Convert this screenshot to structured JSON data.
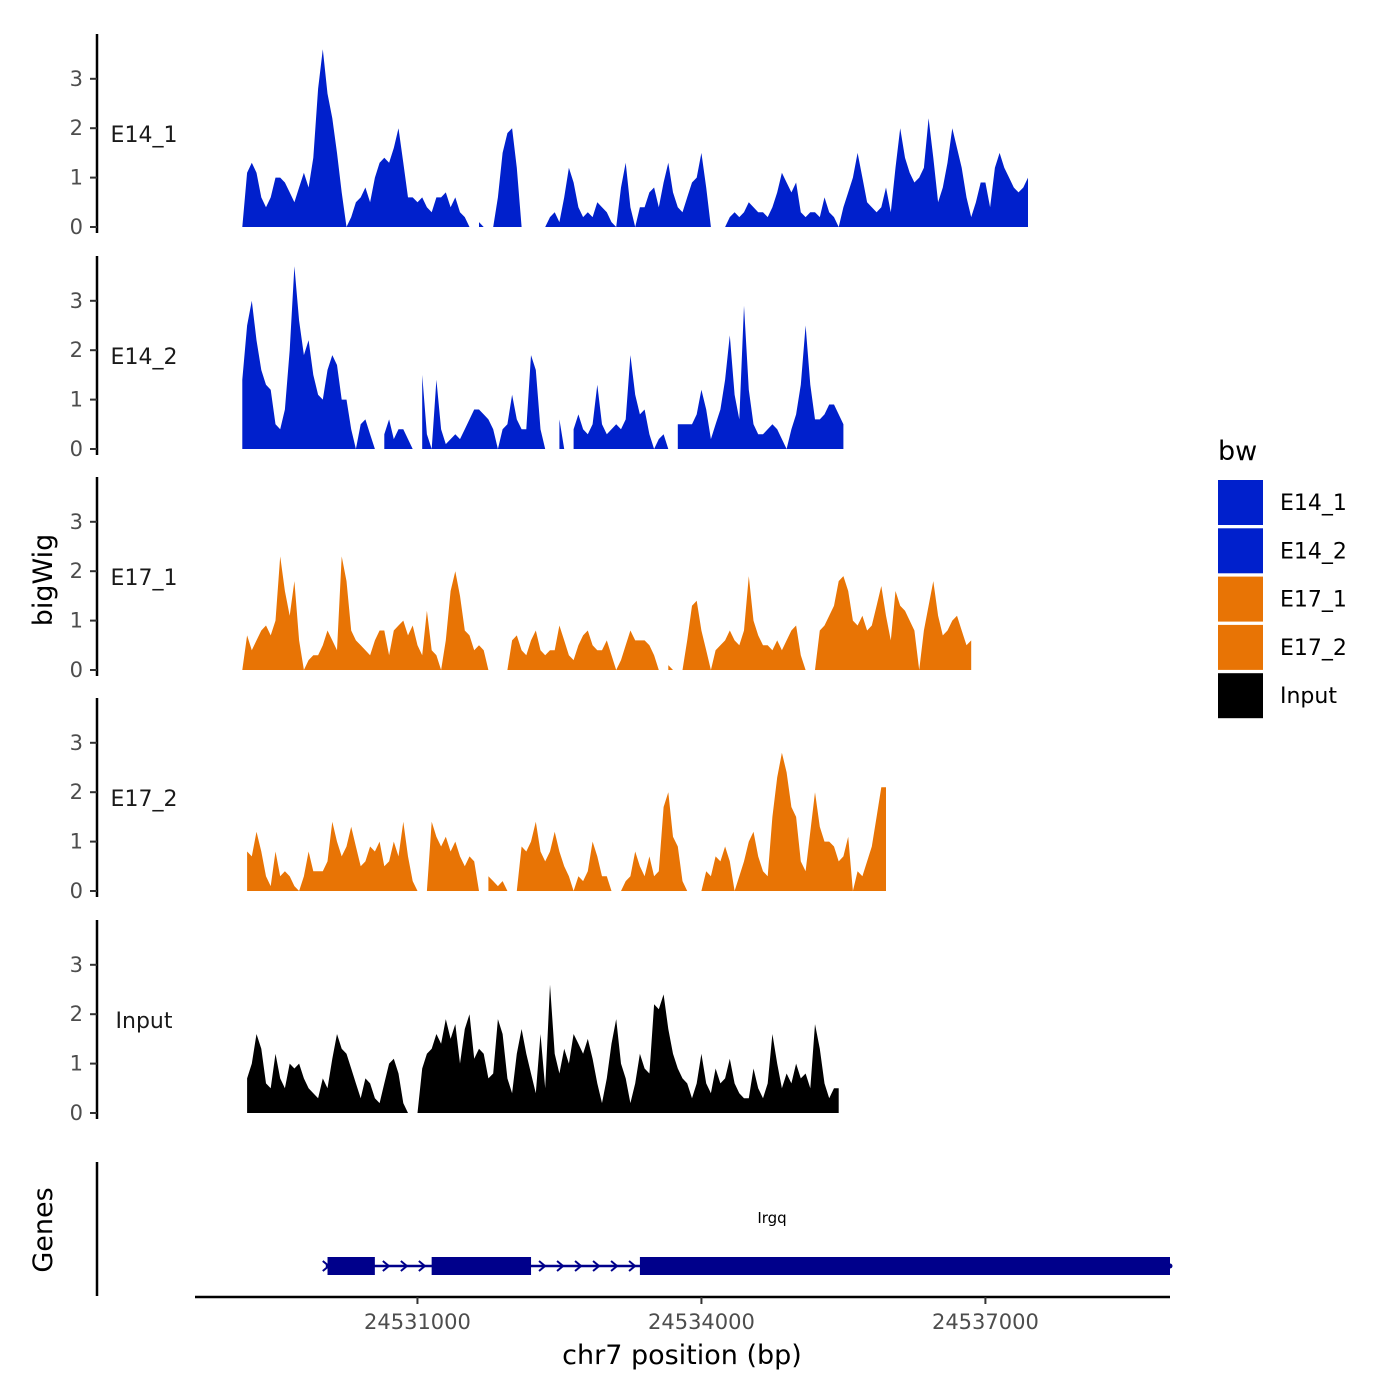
{
  "chart_data": {
    "type": "area",
    "x_range": [
      24528650,
      24538950
    ],
    "y_range": [
      0,
      4
    ],
    "y_ticks": [
      0,
      1,
      2,
      3
    ],
    "ylabel": "bigWig",
    "xlabel": "chr7 position (bp)",
    "x_ticks": [
      {
        "value": 24531000,
        "label": "24531000"
      },
      {
        "value": 24534000,
        "label": "24534000"
      },
      {
        "value": 24537000,
        "label": "24537000"
      }
    ],
    "legend": {
      "title": "bw",
      "items": [
        {
          "label": "E14_1",
          "color": "#0020CC"
        },
        {
          "label": "E14_2",
          "color": "#0020CC"
        },
        {
          "label": "E17_1",
          "color": "#E87405"
        },
        {
          "label": "E17_2",
          "color": "#E87405"
        },
        {
          "label": "Input",
          "color": "#000000"
        }
      ]
    },
    "series": [
      {
        "name": "E14_1",
        "label": "E14_1",
        "color": "#0020CC",
        "x0": 24529150,
        "step": 50,
        "values": [
          0.0,
          1.1,
          1.3,
          1.1,
          0.6,
          0.4,
          0.6,
          1.0,
          1.0,
          0.9,
          0.7,
          0.5,
          0.8,
          1.1,
          0.8,
          1.4,
          2.8,
          3.6,
          2.7,
          2.2,
          1.5,
          0.7,
          0.0,
          0.2,
          0.5,
          0.6,
          0.8,
          0.5,
          1.0,
          1.3,
          1.4,
          1.3,
          1.6,
          2.0,
          1.3,
          0.6,
          0.6,
          0.5,
          0.6,
          0.4,
          0.3,
          0.6,
          0.6,
          0.7,
          0.4,
          0.6,
          0.3,
          0.2,
          0.0,
          null,
          0.1,
          0.0,
          null,
          0.0,
          0.6,
          1.5,
          1.9,
          2.0,
          1.2,
          0.0,
          null,
          null,
          null,
          null,
          0.0,
          0.2,
          0.3,
          0.1,
          0.6,
          1.2,
          0.9,
          0.4,
          0.2,
          0.3,
          0.2,
          0.5,
          0.4,
          0.3,
          0.1,
          0.0,
          0.8,
          1.3,
          0.4,
          0.0,
          0.4,
          0.4,
          0.7,
          0.8,
          0.4,
          0.9,
          1.3,
          0.7,
          0.4,
          0.3,
          0.6,
          0.9,
          1.0,
          1.5,
          0.8,
          0.0,
          null,
          null,
          0.0,
          0.2,
          0.3,
          0.2,
          0.3,
          0.5,
          0.4,
          0.3,
          0.3,
          0.2,
          0.4,
          0.7,
          1.1,
          0.9,
          0.7,
          0.9,
          0.3,
          0.2,
          0.3,
          0.3,
          0.2,
          0.6,
          0.3,
          0.2,
          0.0,
          0.4,
          0.7,
          1.0,
          1.5,
          1.0,
          0.5,
          0.4,
          0.3,
          0.4,
          0.8,
          0.3,
          1.2,
          2.0,
          1.4,
          1.1,
          0.9,
          1.0,
          1.2,
          2.2,
          1.4,
          0.5,
          0.8,
          1.3,
          2.0,
          1.6,
          1.2,
          0.6,
          0.2,
          0.5,
          0.9,
          0.9,
          0.4,
          1.2,
          1.5,
          1.2,
          1.0,
          0.8,
          0.7,
          0.8,
          1.0
        ]
      },
      {
        "name": "E14_2",
        "label": "E14_2",
        "color": "#0020CC",
        "x0": 24529150,
        "step": 50,
        "values": [
          1.4,
          2.5,
          3.0,
          2.2,
          1.6,
          1.3,
          1.2,
          0.5,
          0.4,
          0.8,
          2.0,
          3.7,
          2.6,
          1.9,
          2.2,
          1.5,
          1.1,
          1.0,
          1.6,
          1.9,
          1.7,
          1.0,
          1.0,
          0.4,
          0.0,
          0.5,
          0.6,
          0.3,
          0.0,
          null,
          0.3,
          0.6,
          0.2,
          0.4,
          0.4,
          0.2,
          0.0,
          null,
          1.5,
          0.3,
          0.0,
          1.4,
          0.4,
          0.1,
          0.2,
          0.3,
          0.2,
          0.4,
          0.6,
          0.8,
          0.8,
          0.7,
          0.6,
          0.4,
          0.0,
          0.4,
          0.5,
          1.1,
          0.6,
          0.4,
          0.4,
          1.9,
          1.6,
          0.4,
          0.0,
          null,
          null,
          0.6,
          0.0,
          null,
          0.4,
          0.7,
          0.4,
          0.3,
          0.5,
          1.3,
          0.5,
          0.3,
          0.4,
          0.5,
          0.4,
          0.6,
          1.9,
          1.1,
          0.7,
          0.8,
          0.3,
          0.0,
          0.2,
          0.3,
          0.0,
          null,
          0.5,
          0.5,
          0.5,
          0.5,
          0.7,
          1.2,
          0.8,
          0.2,
          0.5,
          0.8,
          1.4,
          2.3,
          1.1,
          0.6,
          2.9,
          1.2,
          0.5,
          0.3,
          0.3,
          0.4,
          0.5,
          0.4,
          0.2,
          0.0,
          0.4,
          0.7,
          1.3,
          2.5,
          1.3,
          0.6,
          0.6,
          0.7,
          0.9,
          0.9,
          0.7,
          0.5
        ]
      },
      {
        "name": "E17_1",
        "label": "E17_1",
        "color": "#E87405",
        "x0": 24529150,
        "step": 50,
        "values": [
          0.0,
          0.7,
          0.4,
          0.6,
          0.8,
          0.9,
          0.7,
          1.0,
          2.3,
          1.6,
          1.1,
          1.8,
          0.6,
          0.0,
          0.2,
          0.3,
          0.3,
          0.5,
          0.8,
          0.6,
          0.4,
          2.3,
          1.8,
          0.8,
          0.6,
          0.5,
          0.4,
          0.3,
          0.6,
          0.8,
          0.8,
          0.3,
          0.8,
          0.9,
          1.0,
          0.7,
          0.9,
          0.5,
          0.3,
          1.2,
          0.4,
          0.3,
          0.0,
          0.6,
          1.6,
          2.0,
          1.5,
          0.8,
          0.7,
          0.4,
          0.5,
          0.4,
          0.0,
          null,
          null,
          null,
          0.0,
          0.6,
          0.7,
          0.4,
          0.3,
          0.6,
          0.8,
          0.4,
          0.3,
          0.4,
          0.4,
          0.9,
          0.6,
          0.3,
          0.2,
          0.5,
          0.7,
          0.8,
          0.5,
          0.4,
          0.4,
          0.6,
          0.3,
          0.0,
          0.2,
          0.5,
          0.8,
          0.6,
          0.6,
          0.6,
          0.5,
          0.3,
          0.0,
          null,
          0.1,
          0.0,
          null,
          0.0,
          0.6,
          1.3,
          1.4,
          0.8,
          0.4,
          0.0,
          0.4,
          0.5,
          0.6,
          0.8,
          0.6,
          0.5,
          0.8,
          1.9,
          1.0,
          0.7,
          0.5,
          0.5,
          0.4,
          0.6,
          0.4,
          0.6,
          0.8,
          0.9,
          0.3,
          0.0,
          null,
          0.0,
          0.8,
          0.9,
          1.1,
          1.3,
          1.8,
          1.9,
          1.6,
          1.0,
          0.9,
          1.1,
          0.8,
          0.9,
          1.3,
          1.7,
          1.1,
          0.6,
          1.6,
          1.3,
          1.2,
          1.0,
          0.8,
          0.0,
          0.8,
          1.3,
          1.8,
          1.1,
          0.7,
          0.8,
          1.0,
          1.1,
          0.8,
          0.5,
          0.6
        ]
      },
      {
        "name": "E17_2",
        "label": "E17_2",
        "color": "#E87405",
        "x0": 24529200,
        "step": 50,
        "values": [
          0.8,
          0.7,
          1.2,
          0.8,
          0.3,
          0.1,
          0.8,
          0.3,
          0.4,
          0.3,
          0.1,
          0.0,
          0.3,
          0.8,
          0.4,
          0.4,
          0.4,
          0.6,
          1.4,
          1.0,
          0.7,
          0.9,
          1.3,
          0.9,
          0.5,
          0.6,
          0.9,
          0.8,
          1.0,
          0.5,
          0.6,
          1.0,
          0.7,
          1.4,
          0.7,
          0.2,
          0.0,
          null,
          0.0,
          1.4,
          1.1,
          0.9,
          1.1,
          0.8,
          1.0,
          0.7,
          0.5,
          0.7,
          0.6,
          0.0,
          null,
          0.3,
          0.2,
          0.1,
          0.2,
          0.0,
          null,
          0.0,
          0.9,
          0.8,
          1.0,
          1.4,
          0.8,
          0.6,
          0.8,
          1.2,
          0.8,
          0.5,
          0.3,
          0.0,
          0.3,
          0.2,
          0.4,
          1.0,
          0.7,
          0.3,
          0.3,
          0.0,
          null,
          0.0,
          0.2,
          0.3,
          0.8,
          0.5,
          0.3,
          0.7,
          0.3,
          0.4,
          1.7,
          2.0,
          1.1,
          0.9,
          0.2,
          0.0,
          null,
          null,
          0.0,
          0.4,
          0.3,
          0.7,
          0.6,
          0.9,
          0.6,
          0.0,
          0.3,
          0.6,
          1.0,
          1.2,
          0.7,
          0.4,
          0.3,
          1.5,
          2.3,
          2.8,
          2.4,
          1.7,
          1.5,
          0.6,
          0.4,
          1.2,
          2.0,
          1.3,
          1.0,
          1.0,
          0.9,
          0.6,
          0.7,
          1.1,
          0.0,
          0.4,
          0.3,
          0.6,
          0.9,
          1.5,
          2.1,
          2.1
        ]
      },
      {
        "name": "Input",
        "label": "Input",
        "color": "#000000",
        "x0": 24529200,
        "step": 50,
        "values": [
          0.7,
          1.0,
          1.6,
          1.3,
          0.6,
          0.5,
          1.2,
          0.7,
          0.5,
          1.0,
          0.9,
          1.0,
          0.7,
          0.5,
          0.4,
          0.3,
          0.7,
          0.5,
          1.1,
          1.6,
          1.3,
          1.2,
          0.9,
          0.6,
          0.3,
          0.7,
          0.6,
          0.3,
          0.2,
          0.6,
          1.0,
          1.1,
          0.8,
          0.2,
          0.0,
          null,
          0.0,
          0.9,
          1.2,
          1.3,
          1.6,
          1.4,
          1.9,
          1.5,
          1.8,
          1.0,
          1.7,
          2.0,
          1.1,
          1.3,
          1.2,
          0.7,
          0.8,
          1.9,
          1.6,
          0.7,
          0.4,
          1.2,
          1.7,
          1.2,
          0.8,
          0.4,
          1.6,
          0.5,
          2.6,
          1.2,
          0.8,
          1.3,
          1.0,
          1.6,
          1.4,
          1.2,
          1.5,
          1.1,
          0.6,
          0.2,
          0.7,
          1.4,
          1.9,
          1.0,
          0.7,
          0.2,
          0.6,
          1.2,
          0.9,
          0.8,
          2.2,
          2.1,
          2.4,
          1.7,
          1.2,
          0.9,
          0.7,
          0.6,
          0.3,
          0.6,
          1.2,
          0.6,
          0.4,
          0.9,
          0.6,
          0.7,
          1.1,
          0.6,
          0.4,
          0.3,
          0.3,
          0.9,
          0.5,
          0.3,
          0.6,
          1.6,
          1.0,
          0.5,
          0.8,
          0.6,
          1.0,
          0.7,
          0.8,
          0.5,
          1.8,
          1.3,
          0.6,
          0.3,
          0.5,
          0.5
        ]
      }
    ],
    "genes": {
      "label": "Genes",
      "gene_name": "Irgq",
      "start": 24530000,
      "end": 24538950,
      "exons": [
        [
          24530050,
          24530550
        ],
        [
          24531150,
          24532200
        ],
        [
          24533350,
          24538950
        ]
      ],
      "strand": "+"
    }
  }
}
